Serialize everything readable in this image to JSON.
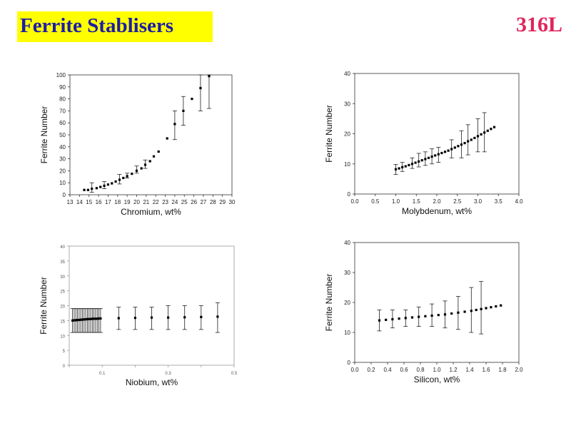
{
  "header": {
    "title": "Ferrite Stablisers",
    "grade": "316L"
  },
  "chart_data": [
    {
      "type": "scatter",
      "xlabel": "Chromium, wt%",
      "ylabel": "Ferrite Number",
      "xlim": [
        13,
        30
      ],
      "ylim": [
        0,
        100
      ],
      "x_ticks": [
        "13",
        "14",
        "15",
        "16",
        "17",
        "18",
        "19",
        "20",
        "21",
        "22",
        "23",
        "24",
        "25",
        "26",
        "27",
        "28",
        "29",
        "30"
      ],
      "y_ticks": [
        "0",
        "10",
        "20",
        "30",
        "40",
        "50",
        "60",
        "70",
        "80",
        "90",
        "100"
      ],
      "points": [
        {
          "x": 14.5,
          "y": 4
        },
        {
          "x": 14.9,
          "y": 4
        },
        {
          "x": 15.3,
          "y": 5,
          "err": [
            2,
            10
          ]
        },
        {
          "x": 15.8,
          "y": 5.5
        },
        {
          "x": 16.2,
          "y": 6.5
        },
        {
          "x": 16.6,
          "y": 7.5,
          "err": [
            5,
            11
          ]
        },
        {
          "x": 17.0,
          "y": 8.5
        },
        {
          "x": 17.4,
          "y": 9.5
        },
        {
          "x": 17.8,
          "y": 11
        },
        {
          "x": 18.2,
          "y": 12.5,
          "err": [
            9,
            17
          ]
        },
        {
          "x": 18.6,
          "y": 14
        },
        {
          "x": 19.0,
          "y": 15.5,
          "err": [
            14,
            18
          ]
        },
        {
          "x": 19.5,
          "y": 17.5
        },
        {
          "x": 20.0,
          "y": 20,
          "err": [
            18,
            24
          ]
        },
        {
          "x": 20.5,
          "y": 22
        },
        {
          "x": 20.9,
          "y": 25,
          "err": [
            22,
            29
          ]
        },
        {
          "x": 21.4,
          "y": 28
        },
        {
          "x": 21.8,
          "y": 32
        },
        {
          "x": 22.3,
          "y": 36
        },
        {
          "x": 23.2,
          "y": 47
        },
        {
          "x": 24.0,
          "y": 59,
          "err": [
            46,
            70
          ]
        },
        {
          "x": 24.9,
          "y": 70,
          "err": [
            58,
            82
          ]
        },
        {
          "x": 25.8,
          "y": 80
        },
        {
          "x": 26.7,
          "y": 89,
          "err": [
            70,
            100
          ]
        },
        {
          "x": 27.6,
          "y": 99,
          "err": [
            72,
            100
          ]
        }
      ]
    },
    {
      "type": "scatter",
      "xlabel": "Molybdenum, wt%",
      "ylabel": "Ferrite Number",
      "xlim": [
        0,
        4
      ],
      "ylim": [
        0,
        40
      ],
      "x_ticks": [
        "0.0",
        "0.5",
        "1.0",
        "1.5",
        "2.0",
        "2.5",
        "3.0",
        "3.5",
        "4.0"
      ],
      "y_ticks": [
        "0",
        "10",
        "20",
        "30",
        "40"
      ],
      "points": [
        {
          "x": 1.0,
          "y": 8.2,
          "err": [
            6.5,
            9.8
          ]
        },
        {
          "x": 1.08,
          "y": 8.5
        },
        {
          "x": 1.16,
          "y": 8.9,
          "err": [
            7.5,
            10.5
          ]
        },
        {
          "x": 1.24,
          "y": 9.2
        },
        {
          "x": 1.32,
          "y": 9.6
        },
        {
          "x": 1.4,
          "y": 10.0,
          "err": [
            8.5,
            12
          ]
        },
        {
          "x": 1.48,
          "y": 10.4
        },
        {
          "x": 1.56,
          "y": 10.8,
          "err": [
            9,
            13.5
          ]
        },
        {
          "x": 1.64,
          "y": 11.2
        },
        {
          "x": 1.72,
          "y": 11.6,
          "err": [
            9.5,
            14
          ]
        },
        {
          "x": 1.8,
          "y": 12.0
        },
        {
          "x": 1.88,
          "y": 12.4,
          "err": [
            10,
            15
          ]
        },
        {
          "x": 1.96,
          "y": 12.8
        },
        {
          "x": 2.04,
          "y": 13.2,
          "err": [
            10.5,
            15.5
          ]
        },
        {
          "x": 2.12,
          "y": 13.6
        },
        {
          "x": 2.2,
          "y": 14.0
        },
        {
          "x": 2.28,
          "y": 14.4
        },
        {
          "x": 2.36,
          "y": 14.9,
          "err": [
            12,
            18
          ]
        },
        {
          "x": 2.44,
          "y": 15.4
        },
        {
          "x": 2.52,
          "y": 15.9
        },
        {
          "x": 2.6,
          "y": 16.4,
          "err": [
            12,
            21
          ]
        },
        {
          "x": 2.68,
          "y": 16.9
        },
        {
          "x": 2.76,
          "y": 17.5,
          "err": [
            13,
            23
          ]
        },
        {
          "x": 2.84,
          "y": 18.0
        },
        {
          "x": 2.92,
          "y": 18.6
        },
        {
          "x": 3.0,
          "y": 19.2,
          "err": [
            14,
            25
          ]
        },
        {
          "x": 3.08,
          "y": 19.8
        },
        {
          "x": 3.16,
          "y": 20.4,
          "err": [
            14,
            27
          ]
        },
        {
          "x": 3.24,
          "y": 21.0
        },
        {
          "x": 3.32,
          "y": 21.6
        },
        {
          "x": 3.4,
          "y": 22.2
        }
      ]
    },
    {
      "type": "scatter",
      "xlabel": "Niobium, wt%",
      "ylabel": "Ferrite Number",
      "xlim": [
        0,
        0.5
      ],
      "ylim": [
        0,
        40
      ],
      "x_ticks": [
        "",
        "0.1",
        "",
        "0.3",
        "",
        "0.5"
      ],
      "y_ticks": [
        "0",
        "5",
        "10",
        "15",
        "20",
        "25",
        "30",
        "35",
        "40"
      ],
      "points": [
        {
          "x": 0.01,
          "y": 15,
          "err": [
            11,
            19
          ]
        },
        {
          "x": 0.015,
          "y": 15.1,
          "err": [
            11,
            19
          ]
        },
        {
          "x": 0.02,
          "y": 15.1,
          "err": [
            11,
            19
          ]
        },
        {
          "x": 0.025,
          "y": 15.2,
          "err": [
            11,
            19
          ]
        },
        {
          "x": 0.03,
          "y": 15.2,
          "err": [
            11,
            19
          ]
        },
        {
          "x": 0.035,
          "y": 15.3,
          "err": [
            11,
            19
          ]
        },
        {
          "x": 0.04,
          "y": 15.3,
          "err": [
            11,
            19
          ]
        },
        {
          "x": 0.045,
          "y": 15.4,
          "err": [
            11,
            19
          ]
        },
        {
          "x": 0.05,
          "y": 15.4,
          "err": [
            11,
            19
          ]
        },
        {
          "x": 0.055,
          "y": 15.5,
          "err": [
            11,
            19
          ]
        },
        {
          "x": 0.06,
          "y": 15.5,
          "err": [
            11,
            19
          ]
        },
        {
          "x": 0.065,
          "y": 15.5,
          "err": [
            11,
            19
          ]
        },
        {
          "x": 0.07,
          "y": 15.6,
          "err": [
            11,
            19
          ]
        },
        {
          "x": 0.075,
          "y": 15.6,
          "err": [
            11,
            19
          ]
        },
        {
          "x": 0.08,
          "y": 15.6,
          "err": [
            11,
            19
          ]
        },
        {
          "x": 0.085,
          "y": 15.6,
          "err": [
            11,
            19
          ]
        },
        {
          "x": 0.09,
          "y": 15.7,
          "err": [
            11,
            19
          ]
        },
        {
          "x": 0.095,
          "y": 15.7,
          "err": [
            11,
            19
          ]
        },
        {
          "x": 0.15,
          "y": 15.8,
          "err": [
            12,
            19.5
          ]
        },
        {
          "x": 0.2,
          "y": 15.9,
          "err": [
            12,
            19.5
          ]
        },
        {
          "x": 0.25,
          "y": 16,
          "err": [
            12,
            19.5
          ]
        },
        {
          "x": 0.3,
          "y": 16,
          "err": [
            12,
            20
          ]
        },
        {
          "x": 0.35,
          "y": 16.1,
          "err": [
            12,
            20
          ]
        },
        {
          "x": 0.4,
          "y": 16.2,
          "err": [
            12,
            20
          ]
        },
        {
          "x": 0.45,
          "y": 16.3,
          "err": [
            11,
            21
          ]
        }
      ]
    },
    {
      "type": "scatter",
      "xlabel": "Silicon, wt%",
      "ylabel": "Ferrite Number",
      "xlim": [
        0,
        2
      ],
      "ylim": [
        0,
        40
      ],
      "x_ticks": [
        "0.0",
        "0.2",
        "0.4",
        "0.6",
        "0.8",
        "1.0",
        "1.2",
        "1.4",
        "1.6",
        "1.8",
        "2.0"
      ],
      "y_ticks": [
        "0",
        "10",
        "20",
        "30",
        "40"
      ],
      "points": [
        {
          "x": 0.3,
          "y": 14,
          "err": [
            10.5,
            17.5
          ]
        },
        {
          "x": 0.38,
          "y": 14.2
        },
        {
          "x": 0.46,
          "y": 14.4,
          "err": [
            11.5,
            17.5
          ]
        },
        {
          "x": 0.54,
          "y": 14.6
        },
        {
          "x": 0.62,
          "y": 14.8,
          "err": [
            12,
            17.5
          ]
        },
        {
          "x": 0.7,
          "y": 15.0
        },
        {
          "x": 0.78,
          "y": 15.2,
          "err": [
            12,
            18.5
          ]
        },
        {
          "x": 0.86,
          "y": 15.4
        },
        {
          "x": 0.94,
          "y": 15.6,
          "err": [
            12,
            19.5
          ]
        },
        {
          "x": 1.02,
          "y": 15.8
        },
        {
          "x": 1.1,
          "y": 16.0,
          "err": [
            11.5,
            20.5
          ]
        },
        {
          "x": 1.18,
          "y": 16.3
        },
        {
          "x": 1.26,
          "y": 16.6,
          "err": [
            11,
            22
          ]
        },
        {
          "x": 1.34,
          "y": 16.9
        },
        {
          "x": 1.42,
          "y": 17.2,
          "err": [
            10,
            25
          ]
        },
        {
          "x": 1.48,
          "y": 17.5
        },
        {
          "x": 1.54,
          "y": 17.8,
          "err": [
            9.5,
            27
          ]
        },
        {
          "x": 1.6,
          "y": 18.1
        },
        {
          "x": 1.66,
          "y": 18.4
        },
        {
          "x": 1.72,
          "y": 18.7
        },
        {
          "x": 1.78,
          "y": 19.0
        }
      ]
    }
  ]
}
